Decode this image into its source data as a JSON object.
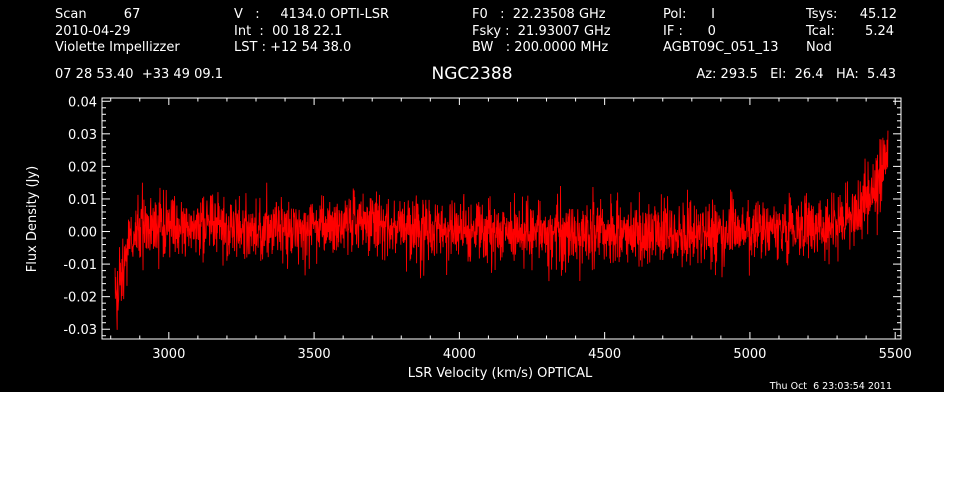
{
  "header": {
    "col1": [
      "Scan         67",
      "2010-04-29",
      "Violette Impellizzer"
    ],
    "col2": [
      "V   :     4134.0 OPTI-LSR",
      "Int  :  00 18 22.1",
      "LST : +12 54 38.0"
    ],
    "col3": [
      "F0   :  22.23508 GHz",
      "Fsky :  21.93007 GHz",
      "BW   : 200.0000 MHz"
    ],
    "col4": [
      "Pol:      I",
      "IF :      0",
      "AGBT09C_051_13"
    ],
    "col5_labels": [
      "Tsys:",
      "Tcal:",
      "Nod"
    ],
    "col5_values": [
      "45.12",
      "5.24",
      ""
    ],
    "coords": "07 28 53.40  +33 49 09.1",
    "source": "NGC2388",
    "pointing": "Az: 293.5   El:  26.4   HA:  5.43",
    "timestamp": "Thu Oct  6 23:03:54 2011"
  },
  "chart_data": {
    "type": "line",
    "title": "NGC2388",
    "xlabel": "LSR Velocity (km/s) OPTICAL",
    "ylabel": "Flux Density (Jy)",
    "xlim": [
      2770,
      5520
    ],
    "ylim": [
      -0.033,
      0.041
    ],
    "xticks": [
      3000,
      3500,
      4000,
      4500,
      5000,
      5500
    ],
    "xtick_labels": [
      "3000",
      "3500",
      "4000",
      "4500",
      "5000",
      "5500"
    ],
    "yticks": [
      -0.03,
      -0.02,
      -0.01,
      0.0,
      0.01,
      0.02,
      0.03,
      0.04
    ],
    "ytick_labels": [
      "-0.03",
      "-0.02",
      "-0.01",
      "0.00",
      "0.01",
      "0.02",
      "0.03",
      "0.04"
    ],
    "grid": false,
    "series": [
      {
        "color": "#ff0000",
        "x_range": [
          2815,
          5475
        ],
        "noise_rms": 0.0048,
        "baseline": [
          [
            2815,
            -0.017
          ],
          [
            2822,
            -0.022
          ],
          [
            2835,
            -0.012
          ],
          [
            2860,
            -0.004
          ],
          [
            2900,
            0.001
          ],
          [
            3000,
            0.002
          ],
          [
            3200,
            0.001
          ],
          [
            3500,
            0.001
          ],
          [
            3700,
            0.003
          ],
          [
            3800,
            0.002
          ],
          [
            4000,
            0.0
          ],
          [
            4200,
            0.0
          ],
          [
            4500,
            -0.0005
          ],
          [
            4800,
            0.0
          ],
          [
            5000,
            0.0
          ],
          [
            5200,
            0.001
          ],
          [
            5300,
            0.002
          ],
          [
            5360,
            0.006
          ],
          [
            5400,
            0.009
          ],
          [
            5430,
            0.012
          ],
          [
            5450,
            0.016
          ],
          [
            5465,
            0.021
          ],
          [
            5475,
            0.025
          ]
        ]
      }
    ]
  }
}
